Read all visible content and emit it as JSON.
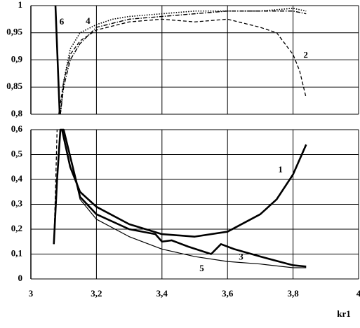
{
  "chart_data": [
    {
      "type": "line",
      "ylim": [
        0.8,
        1
      ],
      "yticks": [
        {
          "value": 0.8,
          "label": "0,8"
        },
        {
          "value": 0.85,
          "label": "0,85"
        },
        {
          "value": 0.9,
          "label": "0,9"
        },
        {
          "value": 0.95,
          "label": "0,95"
        },
        1
      ],
      "grid": true,
      "series": [
        {
          "name": "6",
          "color": "#000000",
          "style": "dotted",
          "x": [
            3.09,
            3.1,
            3.12,
            3.15,
            3.2,
            3.25,
            3.3,
            3.4,
            3.5,
            3.6,
            3.7,
            3.8,
            3.84
          ],
          "values": [
            0.8,
            0.86,
            0.92,
            0.95,
            0.965,
            0.975,
            0.98,
            0.985,
            0.99,
            0.99,
            0.99,
            0.995,
            0.99
          ]
        },
        {
          "name": "4",
          "color": "#000000",
          "style": "dash-dot",
          "x": [
            3.09,
            3.1,
            3.12,
            3.15,
            3.2,
            3.3,
            3.4,
            3.5,
            3.6,
            3.7,
            3.8,
            3.84
          ],
          "values": [
            0.8,
            0.85,
            0.9,
            0.93,
            0.96,
            0.975,
            0.98,
            0.985,
            0.99,
            0.99,
            0.99,
            0.985
          ]
        },
        {
          "name": "2",
          "color": "#000000",
          "style": "dashed",
          "x": [
            3.085,
            3.1,
            3.12,
            3.15,
            3.2,
            3.3,
            3.4,
            3.5,
            3.6,
            3.7,
            3.75,
            3.8,
            3.82,
            3.84
          ],
          "values": [
            0.8,
            0.86,
            0.91,
            0.935,
            0.955,
            0.97,
            0.975,
            0.97,
            0.975,
            0.96,
            0.95,
            0.91,
            0.88,
            0.83
          ]
        },
        {
          "color": "#000000",
          "style": "thick",
          "x": [
            3.075,
            3.088
          ],
          "values": [
            1,
            0.8
          ]
        }
      ]
    },
    {
      "type": "line",
      "xlabel": "kr1",
      "xlim": [
        3,
        4
      ],
      "xticks": [
        3,
        {
          "value": 3.2,
          "label": "3,2"
        },
        {
          "value": 3.4,
          "label": "3,4"
        },
        {
          "value": 3.6,
          "label": "3,6"
        },
        {
          "value": 3.8,
          "label": "3,8"
        },
        4
      ],
      "ylim": [
        0,
        0.6
      ],
      "yticks": [
        0,
        {
          "value": 0.1,
          "label": "0,1"
        },
        {
          "value": 0.2,
          "label": "0,2"
        },
        {
          "value": 0.3,
          "label": "0,3"
        },
        {
          "value": 0.4,
          "label": "0,4"
        },
        {
          "value": 0.5,
          "label": "0,5"
        },
        {
          "value": 0.6,
          "label": "0,6"
        }
      ],
      "grid": true,
      "series": [
        {
          "name": "1",
          "color": "#000000",
          "style": "thick",
          "x": [
            3.095,
            3.12,
            3.15,
            3.2,
            3.3,
            3.4,
            3.5,
            3.6,
            3.7,
            3.75,
            3.8,
            3.84
          ],
          "values": [
            0.6,
            0.45,
            0.35,
            0.29,
            0.22,
            0.18,
            0.17,
            0.19,
            0.26,
            0.32,
            0.42,
            0.54
          ]
        },
        {
          "name": "3",
          "color": "#000000",
          "style": "thick",
          "x": [
            3.07,
            3.08,
            3.09,
            3.1,
            3.15,
            3.2,
            3.3,
            3.38,
            3.4,
            3.43,
            3.48,
            3.55,
            3.58,
            3.62,
            3.7,
            3.8,
            3.84
          ],
          "values": [
            0.14,
            0.4,
            0.6,
            0.6,
            0.33,
            0.26,
            0.2,
            0.18,
            0.15,
            0.155,
            0.13,
            0.1,
            0.14,
            0.12,
            0.09,
            0.055,
            0.05
          ]
        },
        {
          "name": "5",
          "color": "#000000",
          "style": "thin",
          "x": [
            3.1,
            3.15,
            3.2,
            3.3,
            3.4,
            3.5,
            3.6,
            3.7,
            3.8,
            3.84
          ],
          "values": [
            0.6,
            0.32,
            0.24,
            0.17,
            0.12,
            0.09,
            0.07,
            0.06,
            0.045,
            0.045
          ]
        },
        {
          "color": "#000000",
          "style": "dashed",
          "x": [
            3.07,
            3.075,
            3.08
          ],
          "values": [
            0.14,
            0.35,
            0.6
          ]
        }
      ]
    }
  ]
}
